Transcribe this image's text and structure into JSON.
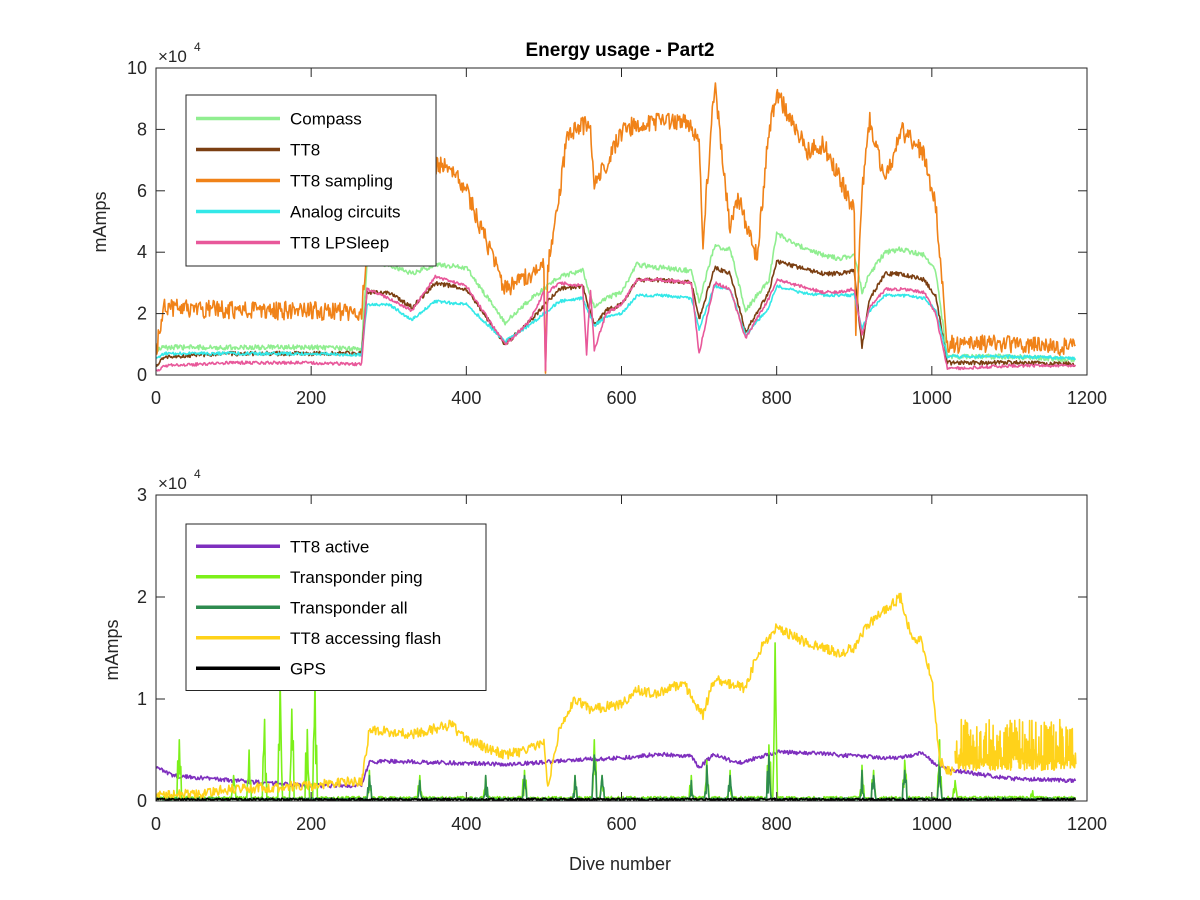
{
  "figure": {
    "background": "#ffffff"
  },
  "chart_data": [
    {
      "type": "line",
      "title": "Energy usage - Part2",
      "xlabel": "",
      "ylabel": "mAmps",
      "xlim": [
        0,
        1200
      ],
      "ylim": [
        0,
        100000
      ],
      "xticks": [
        0,
        200,
        400,
        600,
        800,
        1000,
        1200
      ],
      "xtick_labels": [
        "0",
        "200",
        "400",
        "600",
        "800",
        "1000",
        "1200"
      ],
      "yticks": [
        0,
        20000,
        40000,
        60000,
        80000,
        100000
      ],
      "ytick_labels": [
        "0",
        "2",
        "4",
        "6",
        "8",
        "10"
      ],
      "y_exponent": {
        "base": "×10",
        "power": "4"
      },
      "legend_position": "top-left",
      "grid": false,
      "series": [
        {
          "name": "Compass",
          "color": "#90ee90",
          "style": "noisy",
          "noise": 800,
          "x": [
            0,
            10,
            100,
            200,
            265,
            272,
            300,
            330,
            360,
            400,
            450,
            480,
            520,
            550,
            565,
            580,
            600,
            620,
            650,
            690,
            700,
            720,
            740,
            760,
            790,
            800,
            830,
            860,
            880,
            900,
            910,
            920,
            940,
            960,
            990,
            1005,
            1020,
            1100,
            1185
          ],
          "y": [
            8000,
            9000,
            9000,
            9000,
            8500,
            37000,
            36000,
            33000,
            36000,
            35000,
            17000,
            24000,
            32000,
            34000,
            22000,
            25000,
            27000,
            36000,
            35000,
            34000,
            24000,
            42000,
            41000,
            21000,
            31000,
            46000,
            42000,
            39000,
            38000,
            39000,
            27000,
            33000,
            40000,
            41000,
            39000,
            34000,
            6000,
            6000,
            5000
          ]
        },
        {
          "name": "TT8",
          "color": "#7b3f12",
          "style": "noisy",
          "noise": 700,
          "x": [
            0,
            10,
            100,
            200,
            265,
            272,
            300,
            330,
            360,
            400,
            450,
            480,
            520,
            550,
            565,
            580,
            600,
            620,
            650,
            690,
            700,
            720,
            740,
            760,
            790,
            800,
            830,
            860,
            880,
            900,
            910,
            920,
            940,
            960,
            990,
            1005,
            1020,
            1100,
            1185
          ],
          "y": [
            3000,
            6000,
            7000,
            7000,
            7000,
            27000,
            27000,
            22000,
            30000,
            28000,
            10000,
            17000,
            28000,
            29000,
            16000,
            21000,
            23000,
            31000,
            31000,
            30000,
            18000,
            35000,
            33000,
            14000,
            27000,
            37000,
            35000,
            33000,
            33000,
            34000,
            9000,
            25000,
            33000,
            33000,
            31000,
            26000,
            4000,
            4000,
            3500
          ]
        },
        {
          "name": "TT8 sampling",
          "color": "#f08218",
          "style": "noisy",
          "noise": 3000,
          "x": [
            0,
            10,
            100,
            200,
            265,
            272,
            300,
            330,
            380,
            400,
            450,
            500,
            502,
            505,
            520,
            530,
            560,
            565,
            600,
            620,
            680,
            700,
            705,
            720,
            740,
            750,
            775,
            790,
            800,
            840,
            860,
            880,
            900,
            902,
            910,
            920,
            940,
            960,
            990,
            1005,
            1020,
            1100,
            1185
          ],
          "y": [
            8000,
            22000,
            21000,
            21000,
            20000,
            42000,
            62000,
            68000,
            68000,
            60000,
            28000,
            35000,
            2000,
            35000,
            58000,
            79000,
            82000,
            61000,
            79000,
            82000,
            83000,
            77000,
            44000,
            95000,
            48000,
            58000,
            38000,
            80000,
            92000,
            73000,
            75000,
            65000,
            53000,
            15000,
            60000,
            83000,
            63000,
            80000,
            72000,
            55000,
            10000,
            10000,
            9000
          ]
        },
        {
          "name": "Analog circuits",
          "color": "#33e8e8",
          "style": "noisy",
          "noise": 500,
          "x": [
            0,
            10,
            100,
            200,
            265,
            272,
            300,
            330,
            360,
            400,
            450,
            480,
            520,
            550,
            565,
            580,
            600,
            620,
            650,
            690,
            700,
            720,
            740,
            760,
            790,
            800,
            830,
            860,
            880,
            900,
            910,
            920,
            940,
            960,
            990,
            1005,
            1020,
            1100,
            1185
          ],
          "y": [
            5000,
            7000,
            7000,
            7000,
            6500,
            23000,
            23000,
            18000,
            24000,
            23000,
            11000,
            16000,
            24000,
            25000,
            16000,
            19000,
            20000,
            26000,
            26000,
            25000,
            15000,
            29000,
            28000,
            13000,
            22000,
            29000,
            27000,
            26000,
            26000,
            26000,
            15000,
            21000,
            26000,
            26000,
            25000,
            21000,
            6000,
            6000,
            5500
          ]
        },
        {
          "name": "TT8 LPSleep",
          "color": "#e8589a",
          "style": "noisy",
          "noise": 500,
          "x": [
            0,
            10,
            100,
            200,
            265,
            272,
            300,
            330,
            360,
            400,
            450,
            480,
            500,
            502,
            505,
            520,
            550,
            555,
            560,
            565,
            580,
            600,
            620,
            650,
            690,
            700,
            720,
            740,
            760,
            790,
            800,
            830,
            860,
            880,
            900,
            910,
            920,
            940,
            960,
            990,
            1005,
            1020,
            1100,
            1185
          ],
          "y": [
            1000,
            3000,
            4000,
            4000,
            3500,
            28000,
            25000,
            21000,
            32000,
            29000,
            10000,
            17000,
            27000,
            1000,
            27000,
            30000,
            29000,
            7000,
            28000,
            8000,
            20000,
            23000,
            31000,
            31000,
            30000,
            7000,
            30000,
            28000,
            12000,
            25000,
            31000,
            29000,
            27000,
            27000,
            28000,
            13000,
            22000,
            28000,
            28000,
            27000,
            20000,
            2000,
            3000,
            3000
          ]
        }
      ]
    },
    {
      "type": "line",
      "title": "",
      "xlabel": "Dive number",
      "ylabel": "mAmps",
      "xlim": [
        0,
        1200
      ],
      "ylim": [
        0,
        30000
      ],
      "xticks": [
        0,
        200,
        400,
        600,
        800,
        1000,
        1200
      ],
      "xtick_labels": [
        "0",
        "200",
        "400",
        "600",
        "800",
        "1000",
        "1200"
      ],
      "yticks": [
        0,
        10000,
        20000,
        30000
      ],
      "ytick_labels": [
        "0",
        "1",
        "2",
        "3"
      ],
      "y_exponent": {
        "base": "×10",
        "power": "4"
      },
      "legend_position": "top-left",
      "grid": false,
      "series": [
        {
          "name": "TT8 active",
          "color": "#7e2fbe",
          "style": "noisy",
          "noise": 200,
          "x": [
            0,
            20,
            100,
            200,
            265,
            275,
            300,
            400,
            450,
            500,
            550,
            600,
            650,
            690,
            700,
            720,
            750,
            800,
            850,
            900,
            950,
            990,
            1005,
            1030,
            1100,
            1185
          ],
          "y": [
            3500,
            2500,
            2000,
            1500,
            1500,
            3800,
            3900,
            3700,
            3600,
            3800,
            4100,
            4200,
            4600,
            4400,
            3300,
            4600,
            3700,
            4800,
            4700,
            4400,
            4200,
            4700,
            3500,
            3000,
            2200,
            2000
          ]
        },
        {
          "name": "Transponder ping",
          "color": "#7cf01a",
          "style": "spikes",
          "noise": 150,
          "x": [
            0,
            1185
          ],
          "y": [
            300,
            300
          ],
          "spikes": [
            [
              30,
              6000
            ],
            [
              100,
              2500
            ],
            [
              120,
              5000
            ],
            [
              140,
              8000
            ],
            [
              160,
              12000
            ],
            [
              175,
              9000
            ],
            [
              195,
              7000
            ],
            [
              205,
              12000
            ],
            [
              275,
              3000
            ],
            [
              340,
              2500
            ],
            [
              425,
              2500
            ],
            [
              475,
              3000
            ],
            [
              540,
              2500
            ],
            [
              565,
              6000
            ],
            [
              575,
              2500
            ],
            [
              690,
              2500
            ],
            [
              710,
              4000
            ],
            [
              740,
              3000
            ],
            [
              790,
              5500
            ],
            [
              798,
              15500
            ],
            [
              910,
              3500
            ],
            [
              925,
              3000
            ],
            [
              965,
              4000
            ],
            [
              1010,
              6000
            ],
            [
              1030,
              2000
            ],
            [
              1130,
              1000
            ]
          ]
        },
        {
          "name": "Transponder all",
          "color": "#2e8b4f",
          "style": "spikes",
          "noise": 100,
          "x": [
            0,
            1185
          ],
          "y": [
            200,
            200
          ],
          "spikes": [
            [
              275,
              2500
            ],
            [
              340,
              2000
            ],
            [
              425,
              2500
            ],
            [
              475,
              2500
            ],
            [
              540,
              2500
            ],
            [
              565,
              4500
            ],
            [
              575,
              2500
            ],
            [
              690,
              2000
            ],
            [
              710,
              3500
            ],
            [
              740,
              2500
            ],
            [
              790,
              4500
            ],
            [
              910,
              3000
            ],
            [
              925,
              2500
            ],
            [
              965,
              3000
            ],
            [
              1010,
              4000
            ]
          ]
        },
        {
          "name": "TT8 accessing flash",
          "color": "#ffd21a",
          "style": "noisy",
          "noise": 500,
          "x": [
            0,
            50,
            100,
            200,
            265,
            275,
            300,
            330,
            380,
            400,
            450,
            480,
            500,
            505,
            520,
            540,
            560,
            600,
            620,
            640,
            680,
            700,
            705,
            720,
            760,
            775,
            800,
            840,
            860,
            880,
            900,
            920,
            960,
            975,
            985,
            1000,
            1010,
            1020,
            1030
          ],
          "y": [
            500,
            700,
            1200,
            1500,
            2000,
            7000,
            6800,
            6500,
            7500,
            6000,
            4500,
            5000,
            6000,
            1500,
            7000,
            10000,
            9000,
            9500,
            11000,
            10500,
            11500,
            9000,
            8500,
            12000,
            11000,
            14500,
            17000,
            15500,
            15000,
            14500,
            15000,
            17500,
            20000,
            15500,
            16000,
            12000,
            4000,
            3000,
            3000
          ]
        },
        {
          "name": "",
          "color": "#ffd21a",
          "style": "band",
          "x": [
            1030,
            1185
          ],
          "y": [
            3000,
            3000
          ],
          "upper": [
            8000,
            8000
          ]
        },
        {
          "name": "GPS",
          "color": "#000000",
          "style": "noisy",
          "noise": 120,
          "x": [
            0,
            1185
          ],
          "y": [
            150,
            150
          ]
        }
      ]
    }
  ]
}
